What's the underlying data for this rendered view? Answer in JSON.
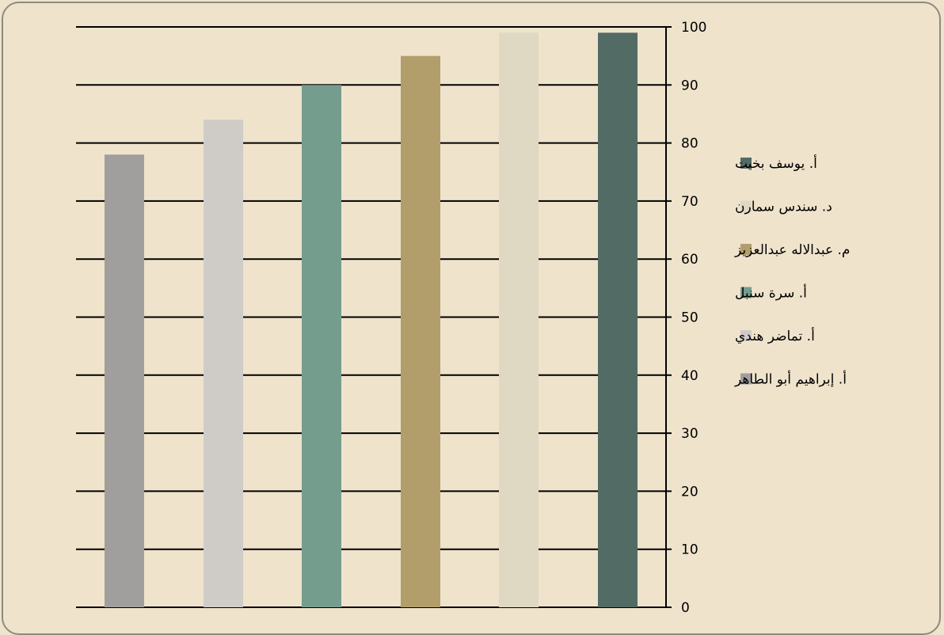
{
  "chart_data": {
    "type": "bar",
    "title": "",
    "xlabel": "",
    "ylabel": "",
    "ylim": [
      0,
      100
    ],
    "y_ticks": [
      "0",
      "10",
      "20",
      "30",
      "40",
      "50",
      "60",
      "70",
      "80",
      "90",
      "100"
    ],
    "y_axis_side": "right",
    "grid": true,
    "legend_position": "right",
    "categories": [
      "أ. إبراهيم أبو الطاهر",
      "أ. تماضر هندي",
      "أ. سرة سنبل",
      "م. عبدالاله عبدالعزيز",
      "د. سندس سمارن",
      "أ. يوسف بخيت"
    ],
    "values": [
      78,
      84,
      90,
      95,
      99,
      99
    ],
    "colors": [
      "#a09f9d",
      "#cfcbc7",
      "#759d8e",
      "#b29e6b",
      "#dfd9c3",
      "#526b64"
    ],
    "legend_order": [
      5,
      4,
      3,
      2,
      1,
      0
    ]
  },
  "theme": {
    "background": "#efe3cc",
    "border": "#8f8a80"
  }
}
